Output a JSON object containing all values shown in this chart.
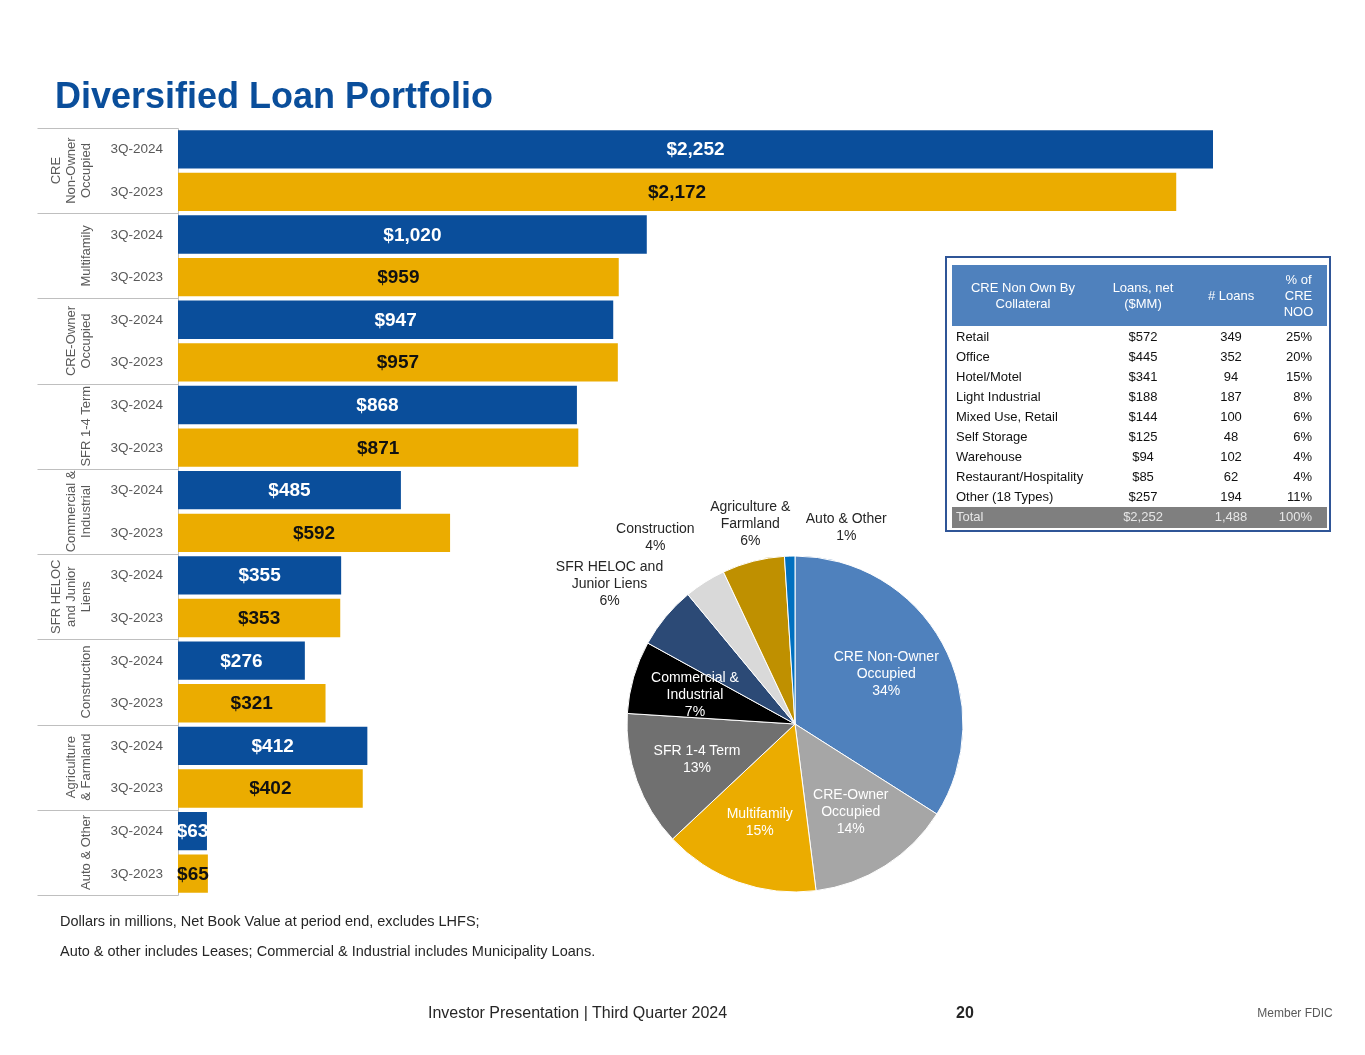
{
  "chart_data": [
    {
      "type": "bar",
      "orientation": "horizontal",
      "title": "Diversified Loan Portfolio",
      "categories": [
        "CRE Non-Owner Occupied",
        "Multifamily",
        "CRE-Owner Occupied",
        "SFR 1-4 Term",
        "Commercial & Industrial",
        "SFR HELOC and Junior Liens",
        "Construction",
        "Agriculture & Farmland",
        "Auto & Other"
      ],
      "series": [
        {
          "name": "3Q-2024",
          "color": "#0a4e9b",
          "values": [
            2252,
            1020,
            947,
            868,
            485,
            355,
            276,
            412,
            63
          ],
          "value_labels": [
            "$2,252",
            "$1,020",
            "$947",
            "$868",
            "$485",
            "$355",
            "$276",
            "$412",
            "$63"
          ]
        },
        {
          "name": "3Q-2023",
          "color": "#ebac00",
          "values": [
            2172,
            959,
            957,
            871,
            592,
            353,
            321,
            402,
            65
          ],
          "value_labels": [
            "$2,172",
            "$959",
            "$957",
            "$871",
            "$592",
            "$353",
            "$321",
            "$402",
            "$65"
          ]
        }
      ],
      "tick_labels": "y",
      "annotations": [
        "Dollars in millions, Net Book Value at period end, excludes LHFS;",
        "Auto & other includes Leases; Commercial & Industrial includes Municipality Loans.",
        "Investor Presentation | Third Quarter 2024",
        "20",
        "Member FDIC"
      ]
    },
    {
      "type": "other",
      "annotations": [
        "CRE Non Own By Collateral",
        "Loans, net ($MM)",
        "# Loans",
        "% of CRE NOO",
        "Retail",
        "$572",
        "349",
        "25%",
        "Office",
        "$445",
        "352",
        "20%",
        "Hotel/Motel",
        "$341",
        "94",
        "15%",
        "Light Industrial",
        "$188",
        "187",
        "8%",
        "Mixed Use, Retail",
        "$144",
        "100",
        "6%",
        "Self Storage",
        "$125",
        "48",
        "6%",
        "Warehouse",
        "$94",
        "102",
        "4%",
        "Restaurant/Hospitality",
        "$85",
        "62",
        "4%",
        "Other (18 Types)",
        "$257",
        "194",
        "11%",
        "Total",
        "$2,252",
        "1,488",
        "100%"
      ]
    },
    {
      "type": "pie",
      "categories": [
        "CRE Non-Owner Occupied",
        "CRE-Owner Occupied",
        "Multifamily",
        "SFR 1-4 Term",
        "Commercial & Industrial",
        "SFR HELOC and Junior Liens",
        "Construction",
        "Agriculture & Farmland",
        "Auto & Other"
      ],
      "values": [
        34,
        14,
        15,
        13,
        7,
        6,
        4,
        6,
        1
      ],
      "colors": [
        "#4f81bd",
        "#a6a6a6",
        "#ebac00",
        "#707070",
        "#000000",
        "#2c4a76",
        "#d9d9d9",
        "#bf9000",
        "#0070c0"
      ],
      "value_labels": [
        "34%",
        "14%",
        "15%",
        "13%",
        "7%",
        "6%",
        "4%",
        "6%",
        "1%"
      ]
    }
  ]
}
